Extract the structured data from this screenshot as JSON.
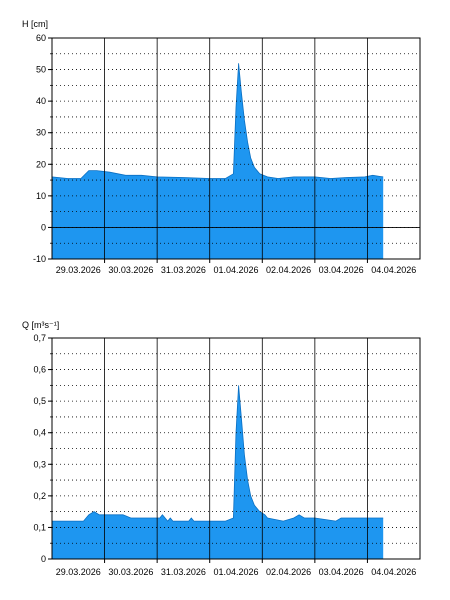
{
  "colors": {
    "fill": "#1e96f0",
    "stroke": "#000000",
    "grid": "#000000",
    "background": "#ffffff"
  },
  "chart_data": [
    {
      "type": "area",
      "ylabel": "H [cm]",
      "ylim": [
        -10,
        60
      ],
      "yticks": [
        "-10",
        "0",
        "10",
        "20",
        "30",
        "40",
        "50",
        "60"
      ],
      "ytick_values": [
        -10,
        0,
        10,
        20,
        30,
        40,
        50,
        60
      ],
      "xlim": [
        0,
        7.0
      ],
      "xticks": [
        "29.03.2026",
        "30.03.2026",
        "31.03.2026",
        "01.04.2026",
        "02.04.2026",
        "03.04.2026",
        "04.04.2026"
      ],
      "xtick_values": [
        0.5,
        1.5,
        2.5,
        3.5,
        4.5,
        5.5,
        6.5
      ],
      "grid": "dotted horizontal minor, solid vertical at day boundaries",
      "baseline": 0,
      "series": [
        {
          "x": [
            0,
            0.3,
            0.55,
            0.7,
            0.85,
            1.1,
            1.4,
            1.7,
            2.0,
            2.5,
            3.0,
            3.3,
            3.45,
            3.5,
            3.55,
            3.6,
            3.66,
            3.72,
            3.78,
            3.85,
            3.95,
            4.1,
            4.3,
            4.6,
            5.0,
            5.3,
            5.6,
            5.95,
            6.1,
            6.3
          ],
          "y": [
            16,
            15.5,
            15.5,
            18,
            18,
            17.5,
            16.5,
            16.5,
            16,
            15.8,
            15.5,
            15.5,
            17,
            38,
            52,
            43,
            34,
            27,
            22,
            19,
            17,
            16,
            15.5,
            16,
            16,
            15.5,
            15.8,
            16,
            16.5,
            16
          ]
        }
      ]
    },
    {
      "type": "area",
      "ylabel": "Q [m³s⁻¹]",
      "ylim": [
        0,
        0.7
      ],
      "yticks": [
        "0",
        "0,1",
        "0,2",
        "0,3",
        "0,4",
        "0,5",
        "0,6",
        "0,7"
      ],
      "ytick_values": [
        0,
        0.1,
        0.2,
        0.3,
        0.4,
        0.5,
        0.6,
        0.7
      ],
      "xlim": [
        0,
        7.0
      ],
      "xticks": [
        "29.03.2026",
        "30.03.2026",
        "31.03.2026",
        "01.04.2026",
        "02.04.2026",
        "03.04.2026",
        "04.04.2026"
      ],
      "xtick_values": [
        0.5,
        1.5,
        2.5,
        3.5,
        4.5,
        5.5,
        6.5
      ],
      "grid": "dotted horizontal minor, solid vertical at day boundaries",
      "baseline": 0,
      "series": [
        {
          "x": [
            0,
            0.3,
            0.6,
            0.7,
            0.8,
            0.9,
            1.1,
            1.35,
            1.5,
            1.9,
            2.05,
            2.1,
            2.2,
            2.25,
            2.3,
            2.6,
            2.65,
            2.7,
            3.0,
            3.3,
            3.45,
            3.5,
            3.55,
            3.6,
            3.66,
            3.72,
            3.78,
            3.85,
            3.95,
            4.05,
            4.1,
            4.4,
            4.6,
            4.7,
            4.8,
            5.0,
            5.4,
            5.5,
            5.7,
            6.0,
            6.3
          ],
          "y": [
            0.12,
            0.12,
            0.12,
            0.14,
            0.15,
            0.14,
            0.14,
            0.14,
            0.13,
            0.13,
            0.13,
            0.14,
            0.12,
            0.13,
            0.12,
            0.12,
            0.13,
            0.12,
            0.12,
            0.12,
            0.13,
            0.4,
            0.55,
            0.45,
            0.33,
            0.25,
            0.2,
            0.17,
            0.15,
            0.14,
            0.13,
            0.12,
            0.13,
            0.14,
            0.13,
            0.13,
            0.12,
            0.13,
            0.13,
            0.13,
            0.13
          ]
        }
      ]
    }
  ]
}
